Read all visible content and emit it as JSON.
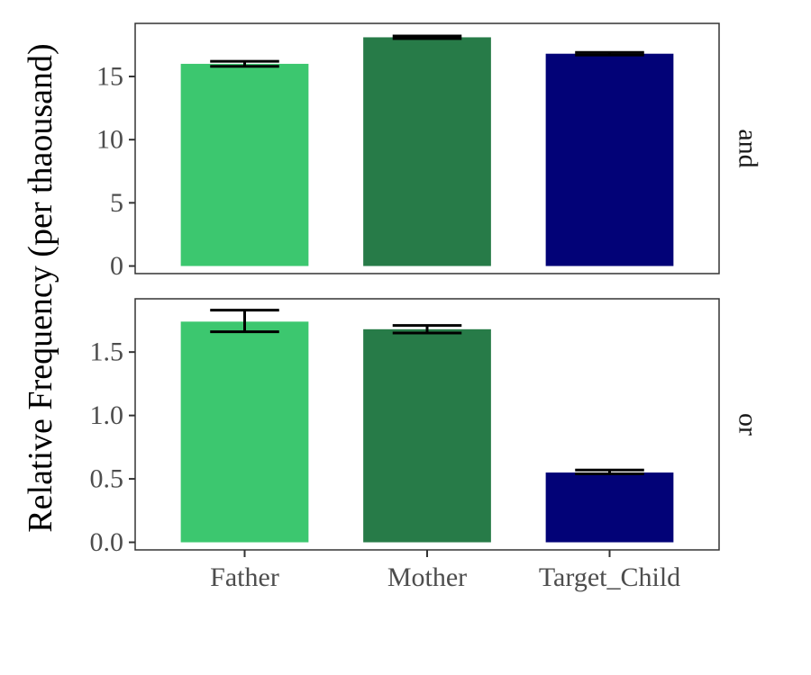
{
  "chart_data": {
    "type": "bar",
    "ylabel": "Relative Frequency (per thaousand)",
    "xlabel": "",
    "categories": [
      "Father",
      "Mother",
      "Target_Child"
    ],
    "colors": [
      "#3cc76f",
      "#277b48",
      "#020277"
    ],
    "grid": false,
    "legend": "none",
    "panels": [
      {
        "label": "and",
        "ylim": [
          -0.6,
          19.2
        ],
        "yticks": [
          0,
          5,
          10,
          15
        ],
        "ytick_labels": [
          "0",
          "5",
          "10",
          "15"
        ],
        "values": [
          16.0,
          18.1,
          16.8
        ],
        "error_low": [
          15.8,
          18.0,
          16.7
        ],
        "error_high": [
          16.2,
          18.2,
          16.9
        ]
      },
      {
        "label": "or",
        "ylim": [
          -0.06,
          1.92
        ],
        "yticks": [
          0.0,
          0.5,
          1.0,
          1.5
        ],
        "ytick_labels": [
          "0.0",
          "0.5",
          "1.0",
          "1.5"
        ],
        "values": [
          1.74,
          1.68,
          0.55
        ],
        "error_low": [
          1.66,
          1.65,
          0.54
        ],
        "error_high": [
          1.83,
          1.71,
          0.57
        ]
      }
    ]
  }
}
